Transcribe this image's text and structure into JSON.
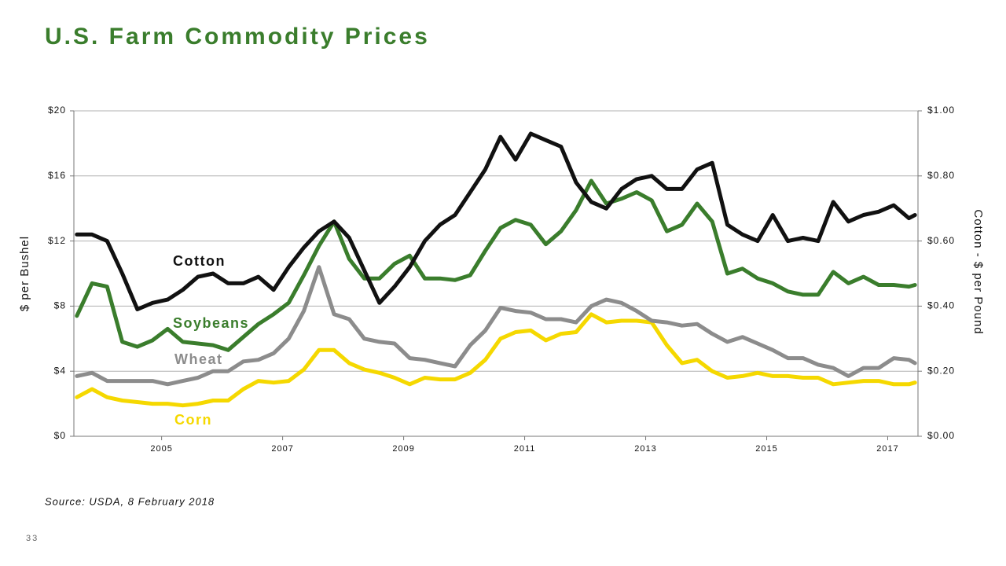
{
  "chart_data": {
    "type": "line",
    "title": "U.S. Farm Commodity Prices",
    "ylabel": "$ per Bushel",
    "y2label": "Cotton - $ per Pound",
    "x": [
      2003.6,
      2003.85,
      2004.1,
      2004.35,
      2004.6,
      2004.85,
      2005.1,
      2005.35,
      2005.6,
      2005.85,
      2006.1,
      2006.35,
      2006.6,
      2006.85,
      2007.1,
      2007.35,
      2007.6,
      2007.85,
      2008.1,
      2008.35,
      2008.6,
      2008.85,
      2009.1,
      2009.35,
      2009.6,
      2009.85,
      2010.1,
      2010.35,
      2010.6,
      2010.85,
      2011.1,
      2011.35,
      2011.6,
      2011.85,
      2012.1,
      2012.35,
      2012.6,
      2012.85,
      2013.1,
      2013.35,
      2013.6,
      2013.85,
      2014.1,
      2014.35,
      2014.6,
      2014.85,
      2015.1,
      2015.35,
      2015.6,
      2015.85,
      2016.1,
      2016.35,
      2016.6,
      2016.85,
      2017.1,
      2017.35,
      2017.45
    ],
    "series": [
      {
        "name": "Cotton",
        "color": "#111111",
        "axis": "y2",
        "values": [
          0.62,
          0.62,
          0.6,
          0.5,
          0.39,
          0.41,
          0.42,
          0.45,
          0.49,
          0.5,
          0.47,
          0.47,
          0.49,
          0.45,
          0.52,
          0.58,
          0.63,
          0.66,
          0.61,
          0.51,
          0.41,
          0.46,
          0.52,
          0.6,
          0.65,
          0.68,
          0.75,
          0.82,
          0.92,
          0.85,
          0.93,
          0.91,
          0.89,
          0.78,
          0.72,
          0.7,
          0.76,
          0.79,
          0.8,
          0.76,
          0.76,
          0.82,
          0.84,
          0.65,
          0.62,
          0.6,
          0.68,
          0.6,
          0.61,
          0.6,
          0.72,
          0.66,
          0.68,
          0.69,
          0.71,
          0.67,
          0.68
        ]
      },
      {
        "name": "Soybeans",
        "color": "#3a7d2c",
        "values": [
          7.4,
          9.4,
          9.2,
          5.8,
          5.5,
          5.9,
          6.6,
          5.8,
          5.7,
          5.6,
          5.3,
          6.1,
          6.9,
          7.5,
          8.2,
          9.9,
          11.7,
          13.2,
          10.9,
          9.7,
          9.7,
          10.6,
          11.1,
          9.7,
          9.7,
          9.6,
          9.9,
          11.4,
          12.8,
          13.3,
          13.0,
          11.8,
          12.6,
          13.9,
          15.7,
          14.3,
          14.6,
          15.0,
          14.5,
          12.6,
          13.0,
          14.3,
          13.2,
          10.0,
          10.3,
          9.7,
          9.4,
          8.9,
          8.7,
          8.7,
          10.1,
          9.4,
          9.8,
          9.3,
          9.3,
          9.2,
          9.3
        ]
      },
      {
        "name": "Wheat",
        "color": "#8c8c8c",
        "values": [
          3.7,
          3.9,
          3.4,
          3.4,
          3.4,
          3.4,
          3.2,
          3.4,
          3.6,
          4.0,
          4.0,
          4.6,
          4.7,
          5.1,
          6.0,
          7.7,
          10.4,
          7.5,
          7.2,
          6.0,
          5.8,
          5.7,
          4.8,
          4.7,
          4.5,
          4.3,
          5.6,
          6.5,
          7.9,
          7.7,
          7.6,
          7.2,
          7.2,
          7.0,
          8.0,
          8.4,
          8.2,
          7.7,
          7.1,
          7.0,
          6.8,
          6.9,
          6.3,
          5.8,
          6.1,
          5.7,
          5.3,
          4.8,
          4.8,
          4.4,
          4.2,
          3.7,
          4.2,
          4.2,
          4.8,
          4.7,
          4.5
        ]
      },
      {
        "name": "Corn",
        "color": "#f5d800",
        "values": [
          2.4,
          2.9,
          2.4,
          2.2,
          2.1,
          2.0,
          2.0,
          1.9,
          2.0,
          2.2,
          2.2,
          2.9,
          3.4,
          3.3,
          3.4,
          4.1,
          5.3,
          5.3,
          4.5,
          4.1,
          3.9,
          3.6,
          3.2,
          3.6,
          3.5,
          3.5,
          3.9,
          4.7,
          6.0,
          6.4,
          6.5,
          5.9,
          6.3,
          6.4,
          7.5,
          7.0,
          7.1,
          7.1,
          7.0,
          5.6,
          4.5,
          4.7,
          4.0,
          3.6,
          3.7,
          3.9,
          3.7,
          3.7,
          3.6,
          3.6,
          3.2,
          3.3,
          3.4,
          3.4,
          3.2,
          3.2,
          3.3
        ]
      }
    ],
    "xlim": [
      2003.55,
      2017.5
    ],
    "xticks": [
      2005,
      2007,
      2009,
      2011,
      2013,
      2015,
      2017
    ],
    "ylim": [
      0,
      20
    ],
    "yticks": [
      {
        "value": 0,
        "label": "$0"
      },
      {
        "value": 4,
        "label": "$4"
      },
      {
        "value": 8,
        "label": "$8"
      },
      {
        "value": 12,
        "label": "$12"
      },
      {
        "value": 16,
        "label": "$16"
      },
      {
        "value": 20,
        "label": "$20"
      }
    ],
    "y2lim": [
      0,
      1
    ],
    "y2ticks": [
      {
        "value": 0,
        "label": "$0.00"
      },
      {
        "value": 0.2,
        "label": "$0.20"
      },
      {
        "value": 0.4,
        "label": "$0.40"
      },
      {
        "value": 0.6,
        "label": "$0.60"
      },
      {
        "value": 0.8,
        "label": "$0.80"
      },
      {
        "value": 1,
        "label": "$1.00"
      }
    ],
    "grid": true
  },
  "source": "Source: USDA, 8 February 2018",
  "page_number": "33"
}
